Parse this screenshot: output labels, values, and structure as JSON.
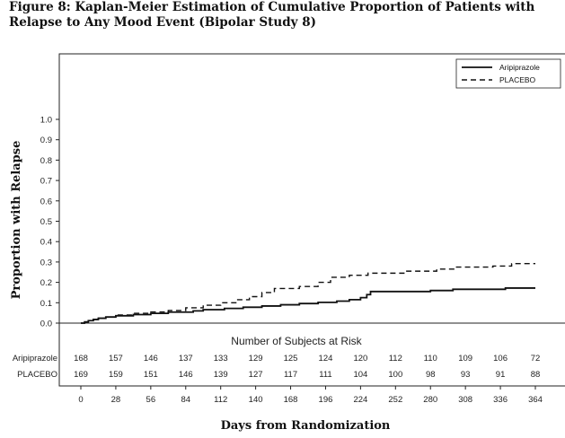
{
  "figure_title": "Figure 8: Kaplan-Meier Estimation of Cumulative Proportion of Patients with Relapse to Any Mood Event (Bipolar Study 8)",
  "chart_data": {
    "type": "line",
    "title": "Figure 8: Kaplan-Meier Estimation of Cumulative Proportion of Patients with Relapse to Any Mood Event (Bipolar Study 8)",
    "xlabel": "Days from Randomization",
    "ylabel": "Proportion with Relapse",
    "xlim": [
      0,
      364
    ],
    "ylim": [
      0,
      1.0
    ],
    "x_ticks": [
      "0",
      "28",
      "56",
      "84",
      "112",
      "140",
      "168",
      "196",
      "224",
      "252",
      "280",
      "308",
      "336",
      "364"
    ],
    "y_ticks": [
      "0.0",
      "0.1",
      "0.2",
      "0.3",
      "0.4",
      "0.5",
      "0.6",
      "0.7",
      "0.8",
      "0.9",
      "1.0"
    ],
    "legend_position": "top-right",
    "grid": false,
    "series": [
      {
        "name": "Aripiprazole",
        "style": "solid",
        "steps": [
          [
            0,
            0
          ],
          [
            3,
            0.006
          ],
          [
            6,
            0.012
          ],
          [
            10,
            0.018
          ],
          [
            14,
            0.024
          ],
          [
            20,
            0.03
          ],
          [
            28,
            0.036
          ],
          [
            42,
            0.042
          ],
          [
            56,
            0.048
          ],
          [
            70,
            0.054
          ],
          [
            90,
            0.06
          ],
          [
            98,
            0.066
          ],
          [
            115,
            0.072
          ],
          [
            130,
            0.078
          ],
          [
            145,
            0.084
          ],
          [
            160,
            0.09
          ],
          [
            175,
            0.096
          ],
          [
            190,
            0.102
          ],
          [
            205,
            0.108
          ],
          [
            215,
            0.115
          ],
          [
            224,
            0.125
          ],
          [
            229,
            0.14
          ],
          [
            232,
            0.155
          ],
          [
            280,
            0.16
          ],
          [
            298,
            0.166
          ],
          [
            340,
            0.172
          ],
          [
            364,
            0.172
          ]
        ]
      },
      {
        "name": "PLACEBO",
        "style": "dashed",
        "steps": [
          [
            0,
            0
          ],
          [
            3,
            0.006
          ],
          [
            6,
            0.012
          ],
          [
            10,
            0.018
          ],
          [
            14,
            0.024
          ],
          [
            20,
            0.03
          ],
          [
            28,
            0.04
          ],
          [
            42,
            0.048
          ],
          [
            56,
            0.055
          ],
          [
            70,
            0.062
          ],
          [
            84,
            0.075
          ],
          [
            98,
            0.088
          ],
          [
            112,
            0.1
          ],
          [
            125,
            0.115
          ],
          [
            135,
            0.13
          ],
          [
            145,
            0.15
          ],
          [
            155,
            0.17
          ],
          [
            175,
            0.18
          ],
          [
            190,
            0.2
          ],
          [
            200,
            0.225
          ],
          [
            215,
            0.235
          ],
          [
            230,
            0.245
          ],
          [
            260,
            0.255
          ],
          [
            285,
            0.265
          ],
          [
            300,
            0.275
          ],
          [
            330,
            0.28
          ],
          [
            345,
            0.292
          ],
          [
            364,
            0.292
          ]
        ]
      }
    ],
    "risk_table": {
      "title": "Number of Subjects at Risk",
      "x": [
        0,
        28,
        56,
        84,
        112,
        140,
        168,
        196,
        224,
        252,
        280,
        308,
        336,
        364
      ],
      "rows": [
        {
          "label": "Aripiprazole",
          "values": [
            "168",
            "157",
            "146",
            "137",
            "133",
            "129",
            "125",
            "124",
            "120",
            "112",
            "110",
            "109",
            "106",
            "72"
          ]
        },
        {
          "label": "PLACEBO",
          "values": [
            "169",
            "159",
            "151",
            "146",
            "139",
            "127",
            "117",
            "111",
            "104",
            "100",
            "98",
            "93",
            "91",
            "88"
          ]
        }
      ]
    }
  }
}
